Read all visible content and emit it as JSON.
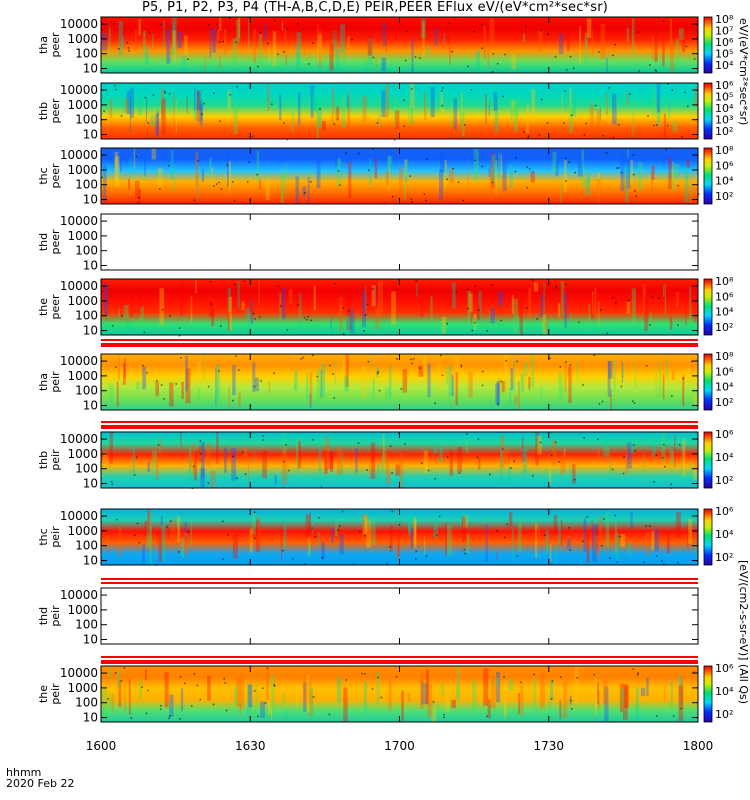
{
  "title": "P5, P1, P2, P3, P4 (TH-A,B,C,D,E) PEIR,PEER EFlux eV/(eV*cm²*sec*sr)",
  "colorbar_units_top": "eV/(eV*cm²*sec*sr)",
  "colorbar_units_bottom": "[eV/(cm2-s-sr-eV)] (All Qs)",
  "footer": {
    "format": "hhmm",
    "date": "2020 Feb 22"
  },
  "chart_data": {
    "type": "heatmap",
    "x_ticks": [
      "1600",
      "1630",
      "1700",
      "1730",
      "1800"
    ],
    "y_ticks": [
      "10",
      "100",
      "1000",
      "10000"
    ],
    "y_scale": "log",
    "colormap": "rainbow (blue-cyan-green-yellow-red)",
    "panels": [
      {
        "label": "tha peer",
        "colorbar_ticks": [
          "10⁴",
          "10⁵",
          "10⁶",
          "10⁷",
          "10⁸"
        ],
        "has_data": true
      },
      {
        "label": "thb peer",
        "colorbar_ticks": [
          "10²",
          "10³",
          "10⁴",
          "10⁵",
          "10⁶"
        ],
        "has_data": true
      },
      {
        "label": "thc peer",
        "colorbar_ticks": [
          "10²",
          "10⁴",
          "10⁶",
          "10⁸"
        ],
        "has_data": true
      },
      {
        "label": "thd peer",
        "colorbar_ticks": [],
        "has_data": false
      },
      {
        "label": "the peer",
        "colorbar_ticks": [
          "10²",
          "10⁴",
          "10⁶",
          "10⁸"
        ],
        "has_data": true
      },
      {
        "label": "tha peir",
        "colorbar_ticks": [
          "10²",
          "10⁴",
          "10⁶",
          "10⁸"
        ],
        "has_data": true
      },
      {
        "label": "thb peir",
        "colorbar_ticks": [
          "10²",
          "10⁴",
          "10⁶"
        ],
        "has_data": true
      },
      {
        "label": "thc peir",
        "colorbar_ticks": [
          "10²",
          "10⁴",
          "10⁶"
        ],
        "has_data": true
      },
      {
        "label": "thd peir",
        "colorbar_ticks": [],
        "has_data": false
      },
      {
        "label": "the peir",
        "colorbar_ticks": [
          "10²",
          "10⁴",
          "10⁶"
        ],
        "has_data": true
      }
    ]
  }
}
